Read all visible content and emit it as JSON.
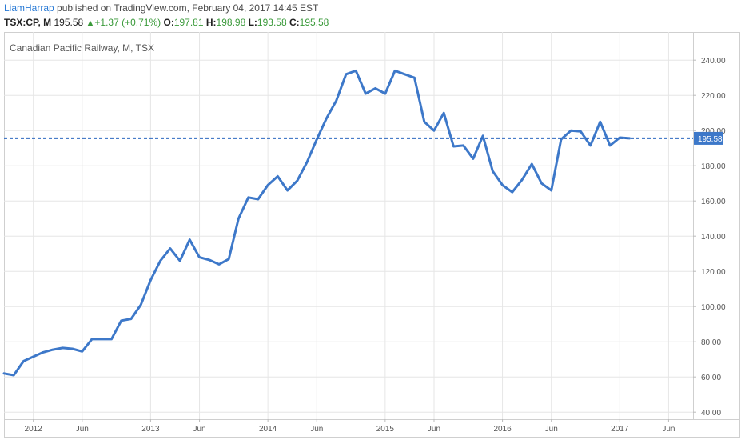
{
  "header": {
    "author": "LiamHarrap",
    "published_text": "published on TradingView.com, February 04, 2017 14:45 EST",
    "symbol_interval": "TSX:CP, M",
    "last_price": "195.58",
    "change": "+1.37 (+0.71%)",
    "o_label": "O:",
    "o_value": "197.81",
    "h_label": "H:",
    "h_value": "198.98",
    "l_label": "L:",
    "l_value": "193.58",
    "c_label": "C:",
    "c_value": "195.58"
  },
  "colors": {
    "line": "#3d78c9",
    "price_line": "#2e6ac0",
    "grid": "#e6e6e6",
    "axis_text": "#555555",
    "price_tag_bg": "#3d78c9",
    "up": "#3a9a3a"
  },
  "chart_data": {
    "type": "line",
    "title": "Canadian Pacific Railway, M, TSX",
    "y_ticks": [
      "40.00",
      "60.00",
      "80.00",
      "100.00",
      "120.00",
      "140.00",
      "160.00",
      "180.00",
      "200.00",
      "220.00",
      "240.00"
    ],
    "ylim": [
      36,
      256
    ],
    "x_ticks": [
      {
        "label": "2012",
        "x": 0
      },
      {
        "label": "Jun",
        "x": 5
      },
      {
        "label": "2013",
        "x": 12
      },
      {
        "label": "Jun",
        "x": 17
      },
      {
        "label": "2014",
        "x": 24
      },
      {
        "label": "Jun",
        "x": 29
      },
      {
        "label": "2015",
        "x": 36
      },
      {
        "label": "Jun",
        "x": 41
      },
      {
        "label": "2016",
        "x": 48
      },
      {
        "label": "Jun",
        "x": 53
      },
      {
        "label": "2017",
        "x": 60
      },
      {
        "label": "Jun",
        "x": 65
      }
    ],
    "xlim": [
      -3,
      67.5
    ],
    "x_unit": "months since Jan 2012",
    "current_price": 195.58,
    "current_price_label": "195.58",
    "grid": true,
    "series": [
      {
        "x": [
          -3,
          -2,
          -1,
          0,
          1,
          2,
          3,
          4,
          5,
          6,
          7,
          8,
          9,
          10,
          11,
          12,
          13,
          14,
          15,
          16,
          17,
          18,
          19,
          20,
          21,
          22,
          23,
          24,
          25,
          26,
          27,
          28,
          29,
          30,
          31,
          32,
          33,
          34,
          35,
          36,
          37,
          38,
          39,
          40,
          41,
          42,
          43,
          44,
          45,
          46,
          47,
          48,
          49,
          50,
          51,
          52,
          53,
          54,
          55,
          56,
          57,
          58,
          59,
          60,
          61
        ],
        "values": [
          62,
          61,
          69,
          71.5,
          74,
          75.5,
          76.5,
          76,
          74.5,
          81.5,
          81.5,
          81.5,
          92,
          93,
          101,
          115,
          126,
          133,
          126,
          138,
          128,
          126.5,
          124,
          127,
          150,
          162,
          161,
          169,
          174,
          166,
          171.5,
          182,
          195,
          207,
          217,
          232,
          234,
          221,
          224,
          221,
          234,
          232,
          230,
          205,
          200,
          210,
          191,
          191.5,
          184,
          197,
          177,
          169,
          165,
          172,
          181,
          170,
          166,
          195,
          200,
          199.5,
          191.5,
          205,
          191.5,
          196,
          195.58
        ]
      }
    ]
  }
}
